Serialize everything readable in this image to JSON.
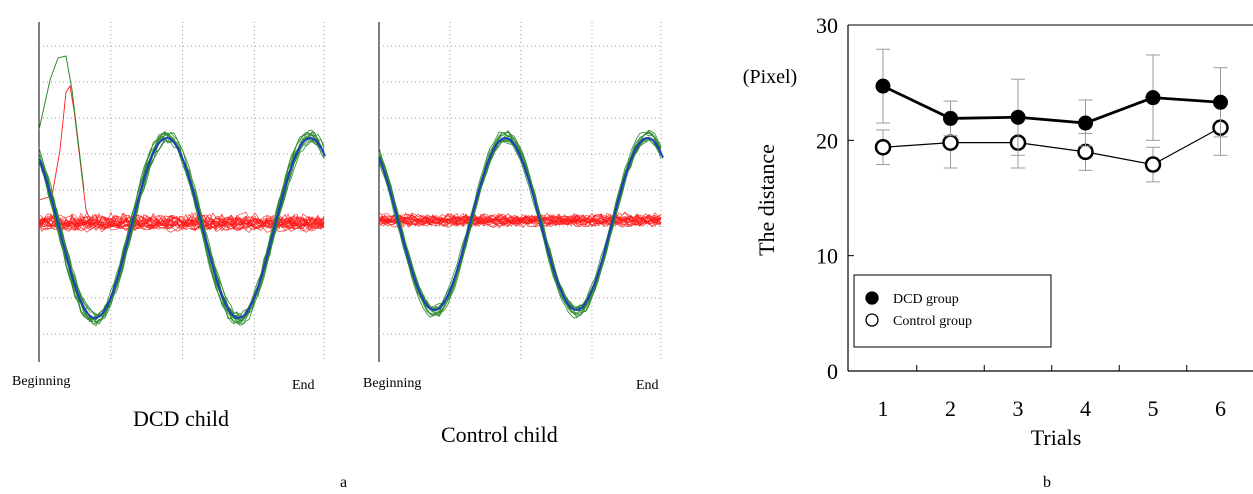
{
  "panels": {
    "a": {
      "label": "a",
      "left_plot": {
        "caption": "DCD child",
        "start_label": "Beginning",
        "end_label": "End"
      },
      "right_plot": {
        "caption": "Control child",
        "start_label": "Beginning",
        "end_label": "End"
      }
    },
    "b": {
      "label": "b"
    }
  },
  "colors": {
    "target": "#1f3fbf",
    "tracking": "#2e8b2e",
    "noise": "#ff1a1a",
    "grid": "#9a9a9a"
  },
  "chart_data": {
    "type": "line",
    "ylabel": "The distance",
    "yunit": "(Pixel)",
    "xlabel": "Trials",
    "categories": [
      1,
      2,
      3,
      4,
      5,
      6
    ],
    "ylim": [
      0,
      30
    ],
    "yticks": [
      0,
      10,
      20,
      30
    ],
    "series": [
      {
        "name": "DCD group",
        "marker": "filled-circle",
        "values": [
          24.7,
          21.9,
          22.0,
          21.5,
          23.7,
          23.3
        ],
        "errors": [
          3.2,
          1.5,
          3.3,
          2.0,
          3.7,
          3.0
        ]
      },
      {
        "name": "Control group",
        "marker": "open-circle",
        "values": [
          19.4,
          19.8,
          19.8,
          19.0,
          17.9,
          21.1
        ],
        "errors": [
          1.5,
          2.2,
          2.2,
          1.6,
          1.5,
          2.4
        ]
      }
    ],
    "legend_position": "lower-left"
  }
}
